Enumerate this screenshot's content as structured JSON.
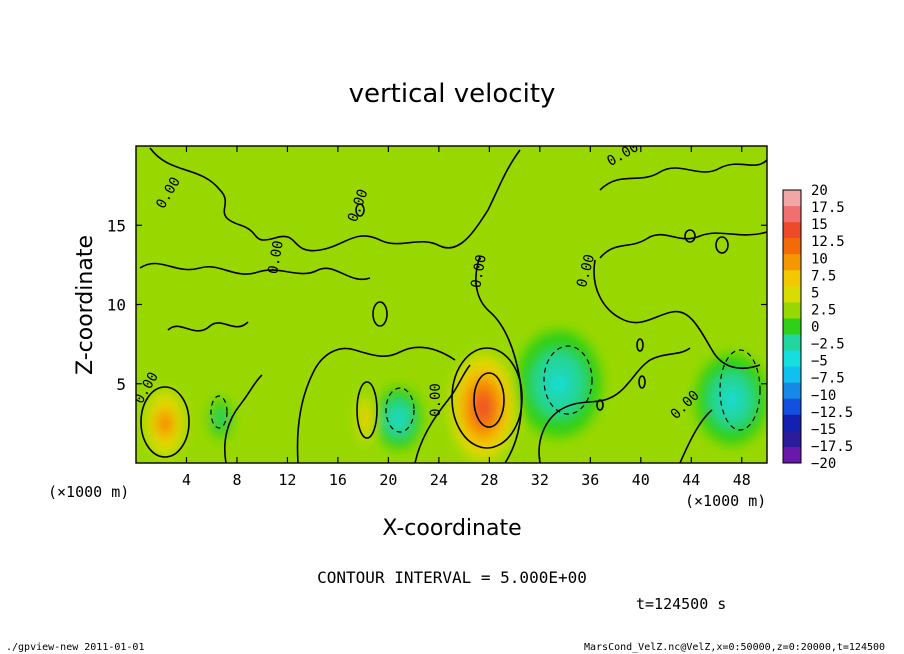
{
  "chart_data": {
    "type": "heatmap",
    "title": "vertical velocity",
    "xlabel": "X-coordinate",
    "ylabel": "Z-coordinate",
    "x_unit": "(×1000 m)",
    "y_unit": "(×1000 m)",
    "xlim": [
      0,
      50
    ],
    "ylim": [
      0,
      20
    ],
    "x_ticks": [
      4,
      8,
      12,
      16,
      20,
      24,
      28,
      32,
      36,
      40,
      44,
      48
    ],
    "y_ticks": [
      5,
      10,
      15
    ],
    "contour_interval_text": "CONTOUR INTERVAL = 5.000E+00",
    "contour_labels": [
      "0.00",
      "0.00",
      "0.00",
      "0.00",
      "0.00",
      "0.00",
      "0.00",
      "0.00",
      "0.00"
    ],
    "time_text": "t=124500 s",
    "colorbar": {
      "levels": [
        20,
        17.5,
        15,
        12.5,
        10,
        7.5,
        5,
        2.5,
        0,
        -2.5,
        -5,
        -7.5,
        -10,
        -12.5,
        -15,
        -17.5,
        -20
      ],
      "labels": [
        "20",
        "17.5",
        "15",
        "12.5",
        "10",
        "7.5",
        "5",
        "2.5",
        "0",
        "−2.5",
        "−5",
        "−7.5",
        "−10",
        "−12.5",
        "−15",
        "−17.5",
        "−20"
      ],
      "colors": [
        "#f3a6a6",
        "#f07070",
        "#ee4a2a",
        "#f36a08",
        "#f59800",
        "#f3c800",
        "#d8dc00",
        "#98d800",
        "#2fd018",
        "#22d6a0",
        "#16dede",
        "#10c0ee",
        "#1688e6",
        "#1450e0",
        "#1420b0",
        "#2a1c9a",
        "#6a18ac"
      ]
    },
    "background_value": 1.0,
    "features": [
      {
        "x": 2.3,
        "z": 2.5,
        "rx": 1.2,
        "rz": 1.6,
        "value": 11
      },
      {
        "x": 18.2,
        "z": 2.8,
        "rx": 0.6,
        "rz": 1.3,
        "value": 7
      },
      {
        "x": 27.5,
        "z": 3.5,
        "rx": 2.0,
        "rz": 2.6,
        "value": 13
      },
      {
        "x": 6.7,
        "z": 2.8,
        "rx": 0.9,
        "rz": 1.3,
        "value": -3
      },
      {
        "x": 20.8,
        "z": 2.8,
        "rx": 1.4,
        "rz": 1.5,
        "value": -5
      },
      {
        "x": 33.5,
        "z": 5.0,
        "rx": 2.6,
        "rz": 2.6,
        "value": -5
      },
      {
        "x": 47.2,
        "z": 4.0,
        "rx": 2.2,
        "rz": 2.2,
        "value": -6
      }
    ]
  },
  "footer": {
    "program": "./gpview-new  2011-01-01",
    "source": "MarsCond_VelZ.nc@VelZ,x=0:50000,z=0:20000,t=124500"
  }
}
